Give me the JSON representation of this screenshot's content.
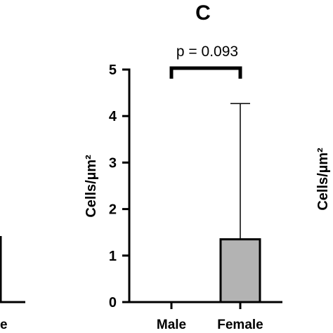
{
  "panel_label": "C",
  "chart_data": {
    "type": "bar",
    "categories": [
      "Male",
      "Female"
    ],
    "values": [
      0,
      1.35
    ],
    "error_upper": [
      0,
      4.27
    ],
    "ylabel": "Cells/µm²",
    "ylim": [
      0,
      5
    ],
    "yticks": [
      "0",
      "1",
      "2",
      "3",
      "4",
      "5"
    ],
    "annotation": "p = 0.093",
    "bar_colors": [
      "#ffffff",
      "#b3b3b3"
    ],
    "bar_edge_color": "#000000"
  },
  "left_panel": {
    "partial_label": "e"
  },
  "right_panel": {
    "ylabel": "Cells/µm²"
  }
}
